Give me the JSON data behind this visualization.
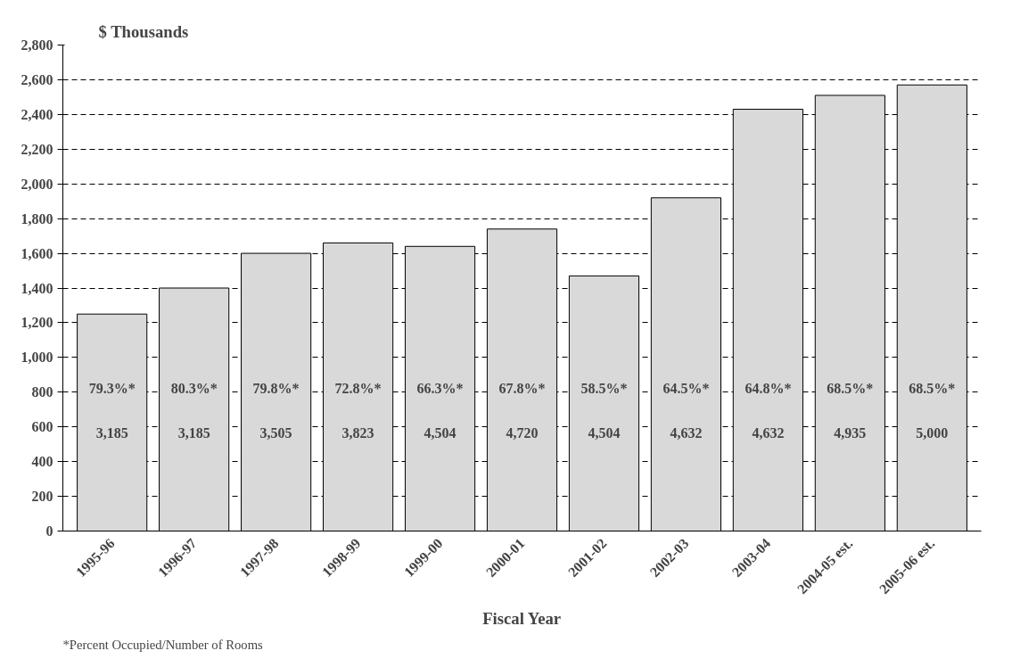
{
  "chart_data": {
    "type": "bar",
    "title": "$ Thousands",
    "xlabel": "Fiscal Year",
    "categories": [
      "1995-96",
      "1996-97",
      "1997-98",
      "1998-99",
      "1999-00",
      "2000-01",
      "2001-02",
      "2002-03",
      "2003-04",
      "2004-05 est.",
      "2005-06 est."
    ],
    "values": [
      1250,
      1400,
      1600,
      1660,
      1640,
      1740,
      1470,
      1920,
      2430,
      2510,
      2570
    ],
    "color": "#d9d9d9",
    "ylim": [
      0,
      2800
    ],
    "yticks": [
      0,
      200,
      400,
      600,
      800,
      {
        "value": 1000,
        "label": "1,000"
      },
      {
        "value": 1200,
        "label": "1,200"
      },
      {
        "value": 1400,
        "label": "1,400"
      },
      {
        "value": 1600,
        "label": "1,600"
      },
      {
        "value": 1800,
        "label": "1,800"
      },
      {
        "value": 2000,
        "label": "2,000"
      },
      {
        "value": 2200,
        "label": "2,200"
      },
      {
        "value": 2400,
        "label": "2,400"
      },
      {
        "value": 2600,
        "label": "2,600"
      },
      {
        "value": 2800,
        "label": "2,800"
      }
    ],
    "grid": "y",
    "annotations": [
      "79.3%*",
      "3,185",
      "80.3%*",
      "3,185",
      "79.8%*",
      "3,505",
      "72.8%*",
      "3,823",
      "66.3%*",
      "4,504",
      "67.8%*",
      "4,720",
      "58.5%*",
      "4,504",
      "64.5%*",
      "4,632",
      "64.8%*",
      "4,632",
      "68.5%*",
      "4,935",
      "68.5%*",
      "5,000",
      "*Percent Occupied/Number of Rooms"
    ]
  }
}
